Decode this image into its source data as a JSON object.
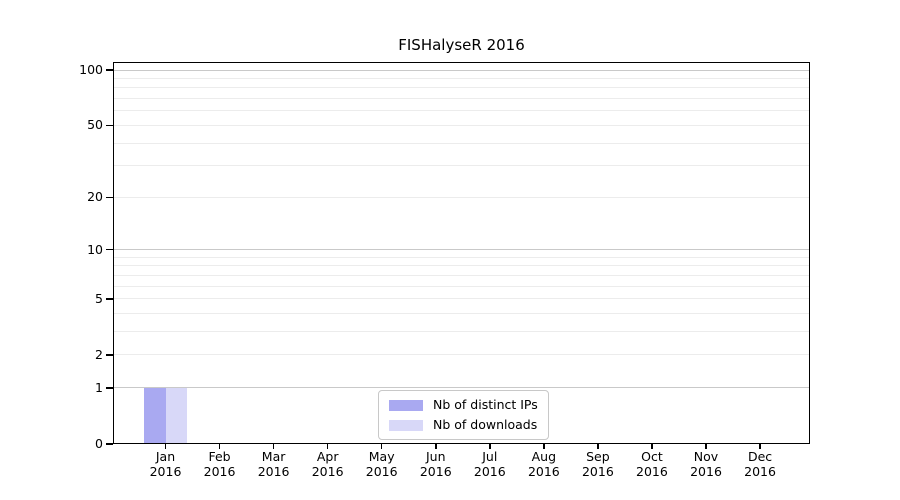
{
  "chart_data": {
    "type": "bar",
    "title": "FISHalyseR 2016",
    "categories": [
      {
        "month": "Jan",
        "year": "2016"
      },
      {
        "month": "Feb",
        "year": "2016"
      },
      {
        "month": "Mar",
        "year": "2016"
      },
      {
        "month": "Apr",
        "year": "2016"
      },
      {
        "month": "May",
        "year": "2016"
      },
      {
        "month": "Jun",
        "year": "2016"
      },
      {
        "month": "Jul",
        "year": "2016"
      },
      {
        "month": "Aug",
        "year": "2016"
      },
      {
        "month": "Sep",
        "year": "2016"
      },
      {
        "month": "Oct",
        "year": "2016"
      },
      {
        "month": "Nov",
        "year": "2016"
      },
      {
        "month": "Dec",
        "year": "2016"
      }
    ],
    "series": [
      {
        "name": "Nb of distinct IPs",
        "color": "#a9a9f1",
        "values": [
          1,
          0,
          0,
          0,
          0,
          0,
          0,
          0,
          0,
          0,
          0,
          0
        ]
      },
      {
        "name": "Nb of downloads",
        "color": "#d8d8f8",
        "values": [
          1,
          0,
          0,
          0,
          0,
          0,
          0,
          0,
          0,
          0,
          0,
          0
        ]
      }
    ],
    "y_axis": {
      "scale": "log10(1+value)",
      "tick_values": [
        0,
        1,
        2,
        5,
        10,
        20,
        50,
        100
      ],
      "gridline_values": [
        1,
        2,
        3,
        4,
        5,
        6,
        7,
        8,
        9,
        10,
        20,
        30,
        40,
        50,
        60,
        70,
        80,
        90,
        100
      ],
      "emphasized_gridlines": [
        1,
        10,
        100
      ],
      "range": [
        0,
        111
      ]
    },
    "legend": {
      "position": "lower center"
    },
    "grid": "horizontal"
  },
  "colors": {
    "background": "#ffffff",
    "axis": "#000000",
    "text": "#000000",
    "grid_major": "#c9c9c9",
    "grid_minor": "#ececec",
    "legend_border": "#c8c8c8"
  }
}
